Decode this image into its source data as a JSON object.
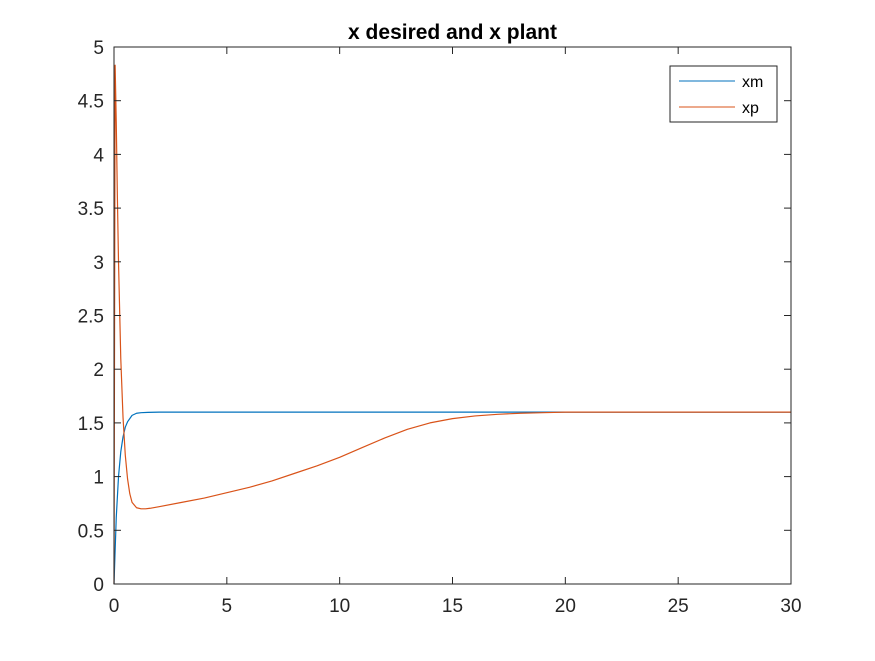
{
  "chart_data": {
    "type": "line",
    "title": "x desired and x plant",
    "xlabel": "",
    "ylabel": "",
    "xlim": [
      0,
      30
    ],
    "ylim": [
      0,
      5
    ],
    "xticks": [
      0,
      5,
      10,
      15,
      20,
      25,
      30
    ],
    "yticks": [
      0,
      0.5,
      1,
      1.5,
      2,
      2.5,
      3,
      3.5,
      4,
      4.5,
      5
    ],
    "xtick_labels": [
      "0",
      "5",
      "10",
      "15",
      "20",
      "25",
      "30"
    ],
    "ytick_labels": [
      "0",
      "0.5",
      "1",
      "1.5",
      "2",
      "2.5",
      "3",
      "3.5",
      "4",
      "4.5",
      "5"
    ],
    "grid": false,
    "legend_position": "top-right",
    "series": [
      {
        "name": "xm",
        "color": "#0072BD",
        "x": [
          0,
          0.1,
          0.2,
          0.3,
          0.4,
          0.5,
          0.6,
          0.8,
          1.0,
          1.2,
          1.5,
          2,
          3,
          5,
          10,
          15,
          20,
          25,
          30
        ],
        "y": [
          0,
          0.62,
          1.0,
          1.23,
          1.37,
          1.46,
          1.51,
          1.57,
          1.59,
          1.595,
          1.598,
          1.6,
          1.6,
          1.6,
          1.6,
          1.6,
          1.6,
          1.6,
          1.6
        ]
      },
      {
        "name": "xp",
        "color": "#D95319",
        "x": [
          0,
          0.05,
          0.1,
          0.15,
          0.2,
          0.3,
          0.4,
          0.5,
          0.6,
          0.7,
          0.8,
          1.0,
          1.2,
          1.4,
          1.6,
          2,
          3,
          4,
          5,
          6,
          7,
          8,
          9,
          10,
          11,
          12,
          13,
          14,
          15,
          16,
          17,
          18,
          19,
          20,
          22,
          25,
          30
        ],
        "y": [
          0,
          4.83,
          4.3,
          3.6,
          3.0,
          2.1,
          1.55,
          1.2,
          0.98,
          0.84,
          0.76,
          0.71,
          0.7,
          0.7,
          0.705,
          0.72,
          0.76,
          0.8,
          0.85,
          0.9,
          0.96,
          1.03,
          1.1,
          1.18,
          1.27,
          1.36,
          1.44,
          1.5,
          1.54,
          1.565,
          1.58,
          1.59,
          1.595,
          1.6,
          1.6,
          1.6,
          1.6
        ]
      }
    ]
  }
}
